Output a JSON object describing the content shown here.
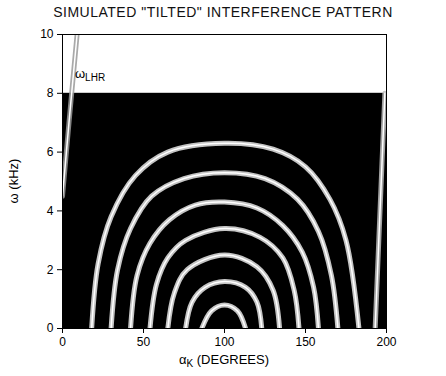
{
  "chart_data": {
    "type": "line",
    "title": "SIMULATED \"TILTED\" INTERFERENCE PATTERN",
    "x_label": {
      "text": "α",
      "subscript": "K",
      "suffix": " (DEGREES)"
    },
    "y_label": "ω (kHz)",
    "xlim": [
      0,
      200
    ],
    "ylim": [
      0,
      10
    ],
    "xticks": [
      0,
      50,
      100,
      150,
      200
    ],
    "yticks": [
      0,
      2,
      4,
      6,
      8,
      10
    ],
    "band": {
      "text": "ω",
      "subscript": "LHR",
      "value": 8,
      "color": "#000000",
      "label_x": 8,
      "label_y": 8.5
    },
    "series": [
      {
        "color": "#e6e6e6",
        "x": [
          18,
          22,
          30,
          45,
          65,
          100,
          130,
          150,
          165,
          175,
          183
        ],
        "values": [
          0,
          2.2,
          3.8,
          5.2,
          6.0,
          6.3,
          6.1,
          5.5,
          4.4,
          3.0,
          0
        ]
      },
      {
        "color": "#e6e6e6",
        "x": [
          30,
          34,
          42,
          55,
          75,
          100,
          125,
          145,
          158,
          166,
          170
        ],
        "values": [
          0,
          2,
          3.4,
          4.5,
          5.1,
          5.3,
          5.1,
          4.4,
          3.3,
          1.8,
          0
        ]
      },
      {
        "color": "#e6e6e6",
        "x": [
          42,
          46,
          54,
          66,
          82,
          100,
          120,
          136,
          148,
          155,
          158
        ],
        "values": [
          0,
          1.8,
          2.9,
          3.7,
          4.2,
          4.3,
          4.1,
          3.5,
          2.6,
          1.4,
          0
        ]
      },
      {
        "color": "#e6e6e6",
        "x": [
          54,
          58,
          65,
          76,
          100,
          122,
          136,
          143,
          146
        ],
        "values": [
          0,
          1.5,
          2.4,
          3.0,
          3.4,
          3.1,
          2.4,
          1.3,
          0
        ]
      },
      {
        "color": "#e6e6e6",
        "x": [
          65,
          69,
          77,
          100,
          120,
          130,
          134
        ],
        "values": [
          0,
          1.2,
          2.0,
          2.5,
          2.1,
          1.3,
          0
        ]
      },
      {
        "color": "#e6e6e6",
        "x": [
          76,
          80,
          88,
          100,
          113,
          120,
          123
        ],
        "values": [
          0,
          0.9,
          1.4,
          1.6,
          1.4,
          0.9,
          0
        ]
      },
      {
        "color": "#e6e6e6",
        "x": [
          86,
          92,
          100,
          108,
          113
        ],
        "values": [
          0,
          0.6,
          0.8,
          0.6,
          0
        ]
      },
      {
        "color": "#9a9a9a",
        "x": [
          0,
          4,
          9
        ],
        "values": [
          4.5,
          7,
          10
        ]
      },
      {
        "color": "#bdbdbd",
        "x": [
          193,
          196,
          199
        ],
        "values": [
          0,
          4,
          8
        ]
      }
    ]
  }
}
